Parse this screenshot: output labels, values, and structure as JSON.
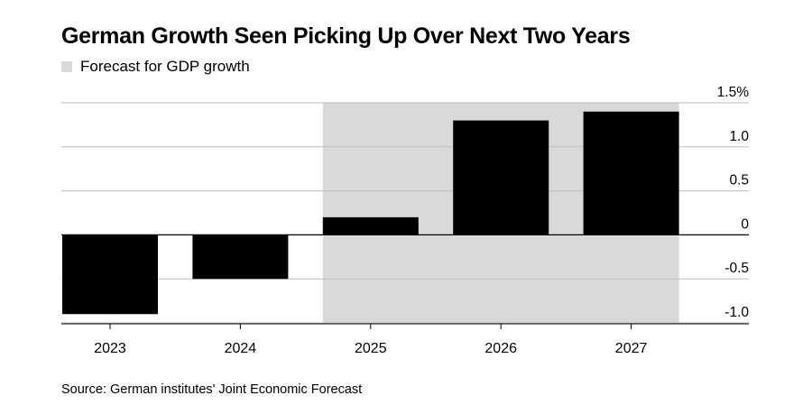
{
  "chart_data": {
    "type": "bar",
    "title": "German Growth Seen Picking Up Over Next Two Years",
    "legend": [
      {
        "label": "Forecast for GDP growth",
        "color": "#d9d9d9",
        "applies_to": [
          "2025",
          "2026",
          "2027"
        ]
      }
    ],
    "categories": [
      "2023",
      "2024",
      "2025",
      "2026",
      "2027"
    ],
    "values": [
      -0.9,
      -0.5,
      0.2,
      1.3,
      1.4
    ],
    "y_ticks": [
      {
        "value": 1.5,
        "label": "1.5%"
      },
      {
        "value": 1.0,
        "label": "1.0"
      },
      {
        "value": 0.5,
        "label": "0.5"
      },
      {
        "value": 0,
        "label": "0"
      },
      {
        "value": -0.5,
        "label": "-0.5"
      },
      {
        "value": -1.0,
        "label": "-1.0"
      }
    ],
    "ylim": [
      -1.0,
      1.5
    ],
    "y_axis_position": "right",
    "grid": true,
    "bar_color": "#000000",
    "forecast_shade_color": "#d9d9d9",
    "source": "Source: German institutes' Joint Economic Forecast"
  }
}
